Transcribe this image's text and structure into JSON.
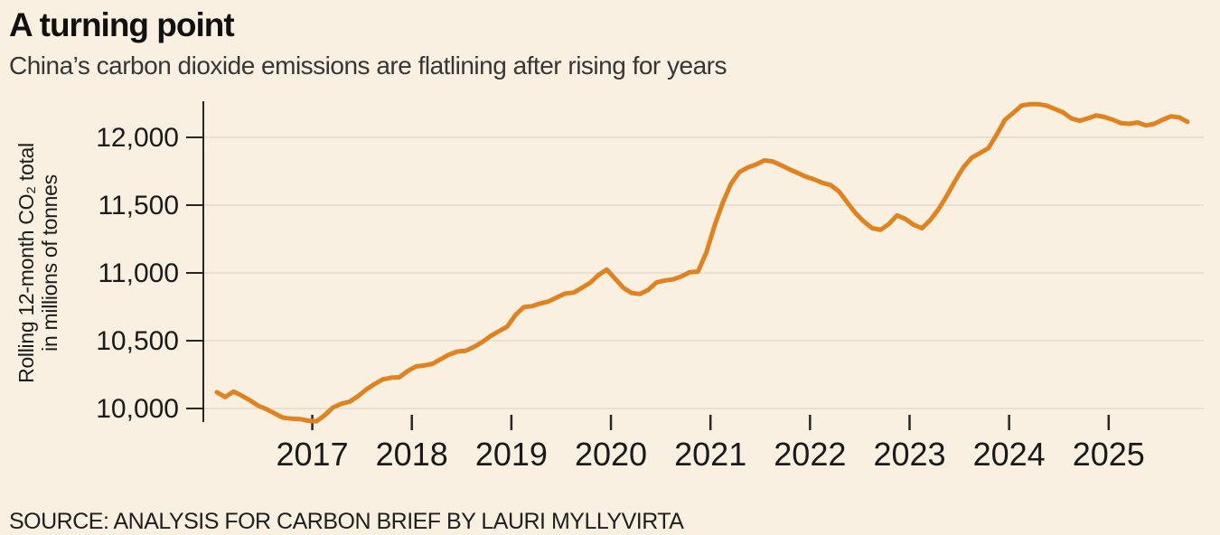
{
  "header": {
    "title": "A turning point",
    "subtitle": "China’s carbon dioxide emissions are flatlining after rising for years"
  },
  "source_line": "SOURCE: ANALYSIS FOR CARBON BRIEF BY LAURI MYLLYVIRTA",
  "colors": {
    "background": "#faf0e1",
    "line": "#e0821f",
    "grid": "#e4dbc9",
    "axis": "#262626",
    "title_text": "#111111",
    "subtitle_text": "#363636"
  },
  "chart_data": {
    "type": "line",
    "title": "A turning point",
    "subtitle": "China’s carbon dioxide emissions are flatlining after rising for years",
    "ylabel_line1": "Rolling 12-month CO₂ total",
    "ylabel_line2": "in millions of tonnes",
    "xlabel": "",
    "x_start": "2016-01",
    "x_end": "2025-10",
    "x_interval": "monthly",
    "x_tick_years": [
      2017,
      2018,
      2019,
      2020,
      2021,
      2022,
      2023,
      2024,
      2025
    ],
    "x_tick_labels": [
      "2017",
      "2018",
      "2019",
      "2020",
      "2021",
      "2022",
      "2023",
      "2024",
      "2025"
    ],
    "y_tick_values": [
      10000,
      10500,
      11000,
      11500,
      12000
    ],
    "y_tick_labels": [
      "10,000",
      "10,500",
      "11,000",
      "11,500",
      "12,000"
    ],
    "ylim": [
      9880,
      12320
    ],
    "grid": "horizontal-only",
    "legend": "none",
    "series": [
      {
        "name": "China rolling 12-month CO2 total (millions of tonnes)",
        "monthly_values": [
          10120,
          10085,
          10125,
          10095,
          10060,
          10020,
          9995,
          9962,
          9932,
          9925,
          9922,
          9910,
          9905,
          9950,
          10007,
          10035,
          10050,
          10090,
          10140,
          10180,
          10215,
          10227,
          10230,
          10276,
          10310,
          10317,
          10330,
          10364,
          10398,
          10420,
          10426,
          10455,
          10490,
          10535,
          10570,
          10605,
          10690,
          10748,
          10755,
          10775,
          10790,
          10820,
          10848,
          10855,
          10890,
          10928,
          10985,
          11025,
          10958,
          10890,
          10852,
          10845,
          10875,
          10930,
          10945,
          10952,
          10975,
          11005,
          11010,
          11150,
          11350,
          11520,
          11660,
          11745,
          11778,
          11800,
          11830,
          11823,
          11795,
          11765,
          11738,
          11710,
          11690,
          11665,
          11648,
          11600,
          11520,
          11440,
          11378,
          11330,
          11318,
          11360,
          11425,
          11398,
          11355,
          11330,
          11390,
          11470,
          11570,
          11680,
          11780,
          11850,
          11885,
          11920,
          12020,
          12130,
          12180,
          12235,
          12245,
          12245,
          12235,
          12210,
          12185,
          12140,
          12122,
          12140,
          12162,
          12150,
          12130,
          12105,
          12100,
          12110,
          12088,
          12100,
          12130,
          12155,
          12148,
          12115
        ]
      }
    ]
  }
}
